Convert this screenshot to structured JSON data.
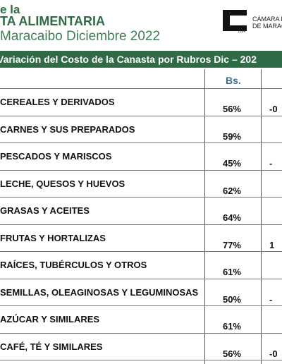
{
  "header": {
    "line1": "e la",
    "line2": "TA ALIMENTARIA",
    "line3": "Maracaibo Diciembre 2022",
    "logo_line1": "CÁMARA D",
    "logo_line2": "DE MARACA",
    "logo_year": "1894"
  },
  "table": {
    "title": "Variación del Costo de la Canasta por Rubros Dic – 202",
    "column_header": "Bs.",
    "rows": [
      {
        "category": "CEREALES Y DERIVADOS",
        "share": "56%",
        "change": "-0"
      },
      {
        "category": "CARNES Y SUS PREPARADOS",
        "share": "59%"
      },
      {
        "category": "PESCADOS Y MARISCOS",
        "share": "45%",
        "change": "-"
      },
      {
        "category": "LECHE, QUESOS Y HUEVOS",
        "share": "62%"
      },
      {
        "category": "GRASAS Y ACEITES",
        "share": "64%"
      },
      {
        "category": "FRUTAS Y HORTALIZAS",
        "share": "77%",
        "change": "1"
      },
      {
        "category": "RAÍCES, TUBÉRCULOS Y OTROS",
        "share": "61%"
      },
      {
        "category": "SEMILLAS, OLEAGINOSAS Y LEGUMINOSAS",
        "share": "50%",
        "change": "-"
      },
      {
        "category": "AZÚCAR Y SIMILARES",
        "share": "61%"
      },
      {
        "category": "CAFÉ, TÉ Y SIMILARES",
        "share": "56%",
        "change": "-0"
      }
    ]
  }
}
